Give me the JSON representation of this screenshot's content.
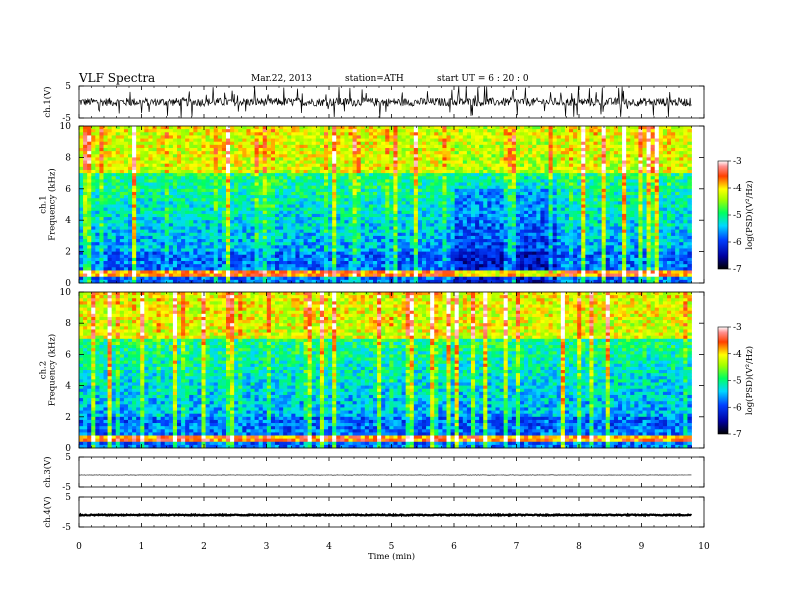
{
  "header": {
    "title": "VLF  Spectra",
    "date": "Mar.22, 2013",
    "station": "station=ATH",
    "start": "start  UT  =   6  : 20 : 0"
  },
  "chart_data": [
    {
      "type": "line",
      "id": "ch1-waveform",
      "ylabel": "ch.1(V)",
      "xlim": [
        0,
        10
      ],
      "ylim": [
        -5,
        5
      ],
      "yticks": [
        5,
        -5
      ],
      "note": "dense noisy waveform spanning 0 to 9.8 min, mostly within about ±1.5 V with spikes near ±5 V"
    },
    {
      "type": "heatmap",
      "id": "ch1-spectrogram",
      "ylabel": "ch.1\nFrequency (kHz)",
      "xlim": [
        0,
        10
      ],
      "ylim": [
        0,
        10
      ],
      "yticks": [
        0,
        2,
        4,
        6,
        8,
        10
      ],
      "data_extent_x": [
        0,
        9.8
      ],
      "colorbar": {
        "label": "log(PSD)(V²/Hz)",
        "range": [
          -7,
          -3
        ],
        "ticks": [
          -3,
          -4,
          -5,
          -6,
          -7
        ]
      }
    },
    {
      "type": "heatmap",
      "id": "ch2-spectrogram",
      "ylabel": "ch.2\nFrequency (kHz)",
      "xlim": [
        0,
        10
      ],
      "ylim": [
        0,
        10
      ],
      "yticks": [
        0,
        2,
        4,
        6,
        8,
        10
      ],
      "data_extent_x": [
        0,
        9.8
      ],
      "colorbar": {
        "label": "log(PSD)(V²/Hz)",
        "range": [
          -7,
          -3
        ],
        "ticks": [
          -3,
          -4,
          -5,
          -6,
          -7
        ]
      }
    },
    {
      "type": "line",
      "id": "ch3-waveform",
      "ylabel": "ch.3(V)",
      "xlim": [
        0,
        10
      ],
      "ylim": [
        -5,
        5
      ],
      "yticks": [
        5,
        -5
      ],
      "note": "nearly flat trace near -1 V"
    },
    {
      "type": "line",
      "id": "ch4-waveform",
      "ylabel": "ch.4(V)",
      "xlim": [
        0,
        10
      ],
      "ylim": [
        -5,
        5
      ],
      "yticks": [
        5,
        -5
      ],
      "note": "thick nearly flat trace near -1 V"
    }
  ],
  "xaxis": {
    "label": "Time  (min)",
    "ticks": [
      "0",
      "1",
      "2",
      "3",
      "4",
      "5",
      "6",
      "7",
      "8",
      "9",
      "10"
    ]
  }
}
